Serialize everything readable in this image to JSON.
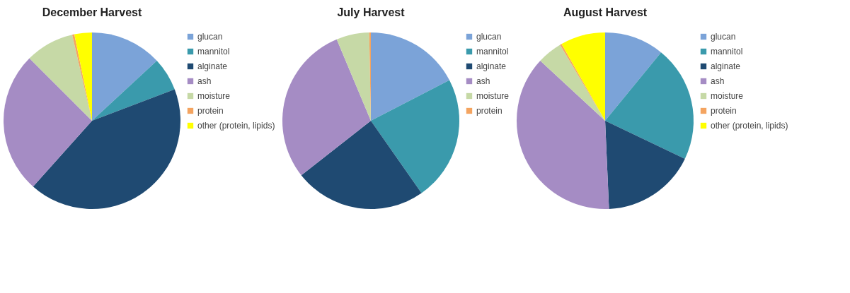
{
  "chart_data": [
    {
      "type": "pie",
      "title": "December Harvest",
      "categories": [
        "glucan",
        "mannitol",
        "alginate",
        "ash",
        "moisture",
        "protein",
        "other (protein, lipids)"
      ],
      "values": [
        13.1,
        6.1,
        42.4,
        25.9,
        8.9,
        0.4,
        3.2
      ],
      "colors": [
        "#7ba3d8",
        "#3a9aac",
        "#1f4a72",
        "#a58cc4",
        "#c6d9a6",
        "#f4a460",
        "#ffff00"
      ],
      "legend": "right"
    },
    {
      "type": "pie",
      "title": "July Harvest",
      "categories": [
        "glucan",
        "mannitol",
        "alginate",
        "ash",
        "moisture",
        "protein"
      ],
      "values": [
        17.4,
        22.9,
        24.1,
        29.3,
        6.0,
        0.3
      ],
      "colors": [
        "#7ba3d8",
        "#3a9aac",
        "#1f4a72",
        "#a58cc4",
        "#c6d9a6",
        "#f4a460"
      ],
      "legend": "right"
    },
    {
      "type": "pie",
      "title": "August Harvest",
      "categories": [
        "glucan",
        "mannitol",
        "alginate",
        "ash",
        "moisture",
        "protein",
        "other (protein, lipids)"
      ],
      "values": [
        10.9,
        21.2,
        17.2,
        37.6,
        4.6,
        0.3,
        8.2
      ],
      "colors": [
        "#7ba3d8",
        "#3a9aac",
        "#1f4a72",
        "#a58cc4",
        "#c6d9a6",
        "#f4a460",
        "#ffff00"
      ],
      "legend": "right"
    }
  ]
}
